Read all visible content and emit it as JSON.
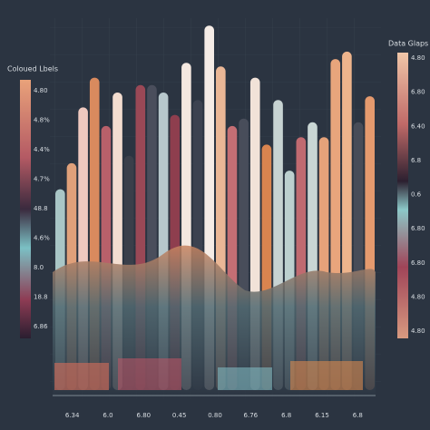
{
  "chart_data": {
    "type": "bar",
    "ylim": [
      0,
      100
    ],
    "values": [
      54,
      61,
      76,
      84,
      71,
      80,
      63,
      82,
      82,
      80,
      74,
      88,
      78,
      98,
      87,
      71,
      73,
      84,
      66,
      78,
      59,
      68,
      72,
      68,
      89,
      91,
      72,
      79
    ],
    "colors": [
      "#a9c6c6",
      "#e0a07a",
      "#efc9bf",
      "#d98a5e",
      "#b8606a",
      "#f3ddd0",
      "#3a3f4a",
      "#9a4856",
      "#4a4e5c",
      "#b7c7cc",
      "#8e3e4e",
      "#f4e8e0",
      "#3c4250",
      "#f5ece6",
      "#eab796",
      "#c46e74",
      "#484d5a",
      "#f1e2d8",
      "#d9844f",
      "#c7d3d2",
      "#bcd0cf",
      "#c06a70",
      "#c9d6d4",
      "#e6a27a",
      "#e8a57c",
      "#eeb48c",
      "#474c58",
      "#e59a6e"
    ],
    "x_labels": [
      "6.34",
      "6.0",
      "6.80",
      "0.45",
      "0.80",
      "6.76",
      "6.8",
      "6.15",
      "6.8"
    ],
    "left_legend": {
      "title": "Coloued Lbels",
      "labels": [
        "4.80",
        "4.8%",
        "4.4%",
        "4.7%",
        "48.8",
        "4.6%",
        "8.0",
        "18.8",
        "6.86"
      ]
    },
    "right_legend": {
      "title": "Data Glaps",
      "labels": [
        "4.80",
        "6.80",
        "6.40",
        "6.8",
        "0.6",
        "6.80",
        "6.80",
        "4.80",
        "4.80"
      ]
    }
  }
}
